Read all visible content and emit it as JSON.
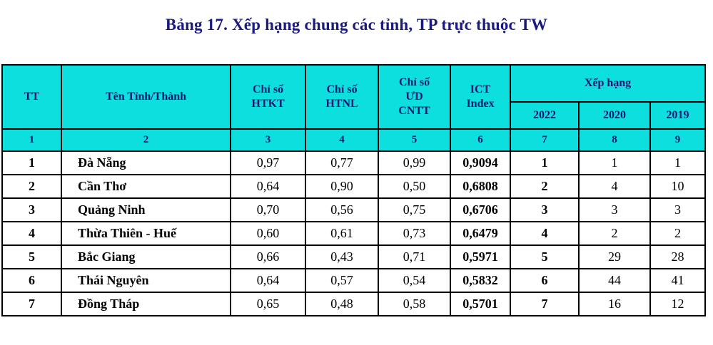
{
  "page": {
    "title": "Bảng 17. Xếp hạng chung các tỉnh, TP trực thuộc TW"
  },
  "colors": {
    "header_bg": "#0ddede",
    "header_text": "#191970",
    "title_text": "#1a1a80",
    "border": "#000000"
  },
  "table": {
    "columns": [
      {
        "key": "tt",
        "label": "TT"
      },
      {
        "key": "province",
        "label": "Tên Tỉnh/Thành"
      },
      {
        "key": "htkt",
        "label": "Chỉ số\nHTKT"
      },
      {
        "key": "htnl",
        "label": "Chỉ số\nHTNL"
      },
      {
        "key": "udcntt",
        "label": "Chỉ số\nƯD\nCNTT"
      },
      {
        "key": "ict-index",
        "label": "ICT\nIndex"
      }
    ],
    "ranking_group": {
      "label": "Xếp hạng",
      "years": [
        "2022",
        "2020",
        "2019"
      ]
    },
    "numbering_row": [
      "1",
      "2",
      "3",
      "4",
      "5",
      "6",
      "7",
      "8",
      "9"
    ],
    "rows": [
      [
        "1",
        "Đà Nẵng",
        "0,97",
        "0,77",
        "0,99",
        "0,9094",
        "1",
        "1",
        "1"
      ],
      [
        "2",
        "Cần Thơ",
        "0,64",
        "0,90",
        "0,50",
        "0,6808",
        "2",
        "4",
        "10"
      ],
      [
        "3",
        "Quảng Ninh",
        "0,70",
        "0,56",
        "0,75",
        "0,6706",
        "3",
        "3",
        "3"
      ],
      [
        "4",
        "Thừa Thiên - Huế",
        "0,60",
        "0,61",
        "0,73",
        "0,6479",
        "4",
        "2",
        "2"
      ],
      [
        "5",
        "Bắc Giang",
        "0,66",
        "0,43",
        "0,71",
        "0,5971",
        "5",
        "29",
        "28"
      ],
      [
        "6",
        "Thái Nguyên",
        "0,64",
        "0,57",
        "0,54",
        "0,5832",
        "6",
        "44",
        "41"
      ],
      [
        "7",
        "Đồng Tháp",
        "0,65",
        "0,48",
        "0,58",
        "0,5701",
        "7",
        "16",
        "12"
      ]
    ]
  }
}
